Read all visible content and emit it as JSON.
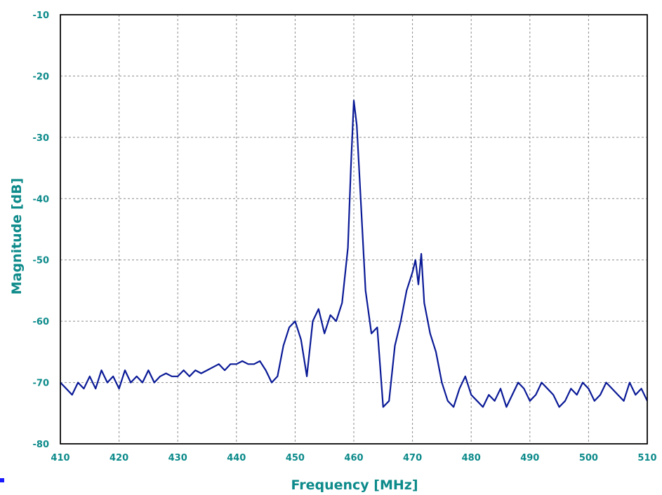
{
  "chart_data": {
    "type": "line",
    "xlabel": "Frequency [MHz]",
    "ylabel": "Magnitude [dB]",
    "xlim": [
      410,
      510
    ],
    "ylim": [
      -80,
      -10
    ],
    "xticks": [
      410,
      420,
      430,
      440,
      450,
      460,
      470,
      480,
      490,
      500,
      510
    ],
    "yticks": [
      -10,
      -20,
      -30,
      -40,
      -50,
      -60,
      -70,
      -80
    ],
    "grid": true,
    "colors": {
      "series": "#0a1a96",
      "ticks": "#0d8a8a",
      "marker": "#1a1aff"
    },
    "series": [
      {
        "x": [
          410,
          411,
          412,
          413,
          414,
          415,
          416,
          417,
          418,
          419,
          420,
          421,
          422,
          423,
          424,
          425,
          426,
          427,
          428,
          429,
          430,
          431,
          432,
          433,
          434,
          435,
          436,
          437,
          438,
          439,
          440,
          441,
          442,
          443,
          444,
          445,
          446,
          447,
          448,
          449,
          450,
          451,
          452,
          453,
          454,
          455,
          456,
          457,
          458,
          459,
          459.5,
          460,
          460.5,
          461,
          462,
          463,
          464,
          465,
          466,
          467,
          468,
          469,
          470,
          470.5,
          471,
          471.5,
          472,
          473,
          474,
          475,
          476,
          477,
          478,
          479,
          480,
          481,
          482,
          483,
          484,
          485,
          486,
          487,
          488,
          489,
          490,
          491,
          492,
          493,
          494,
          495,
          496,
          497,
          498,
          499,
          500,
          501,
          502,
          503,
          504,
          505,
          506,
          507,
          508,
          509,
          510
        ],
        "values": [
          -70,
          -71,
          -72,
          -70,
          -71,
          -69,
          -71,
          -68,
          -70,
          -69,
          -71,
          -68,
          -70,
          -69,
          -70,
          -68,
          -70,
          -69,
          -68.5,
          -69,
          -69,
          -68,
          -69,
          -68,
          -68.5,
          -68,
          -67.5,
          -67,
          -68,
          -67,
          -67,
          -66.5,
          -67,
          -67,
          -66.5,
          -68,
          -70,
          -69,
          -64,
          -61,
          -60,
          -63,
          -69,
          -60,
          -58,
          -62,
          -59,
          -60,
          -57,
          -48,
          -35,
          -24,
          -28,
          -37,
          -55,
          -62,
          -61,
          -74,
          -73,
          -64,
          -60,
          -55,
          -52,
          -50,
          -54,
          -49,
          -57,
          -62,
          -65,
          -70,
          -73,
          -74,
          -71,
          -69,
          -72,
          -73,
          -74,
          -72,
          -73,
          -71,
          -74,
          -72,
          -70,
          -71,
          -73,
          -72,
          -70,
          -71,
          -72,
          -74,
          -73,
          -71,
          -72,
          -70,
          -71,
          -73,
          -72,
          -70,
          -71,
          -72,
          -73,
          -70,
          -72,
          -71,
          -73
        ]
      }
    ]
  }
}
